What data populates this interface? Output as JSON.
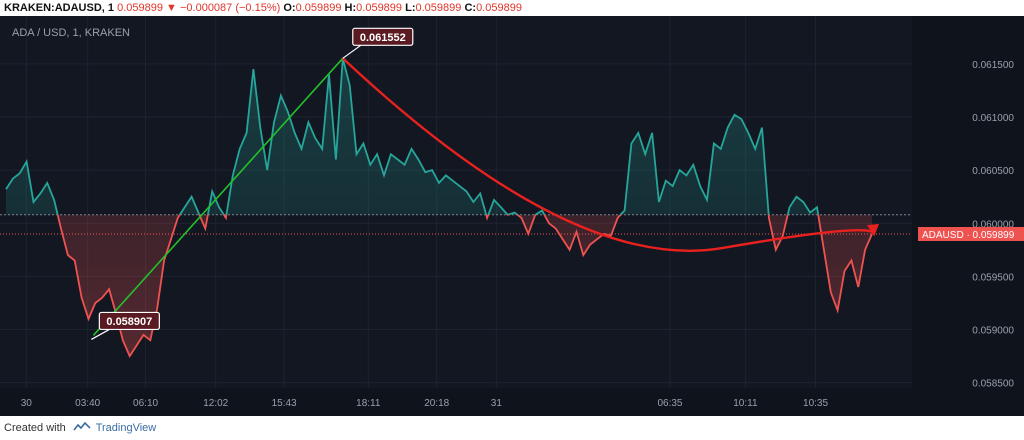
{
  "header": {
    "symbol": "KRAKEN:ADAUSD, 1",
    "last": "0.059899",
    "change_arrow": "▼",
    "change": "−0.000087 (−0.15%)",
    "open_label": "O:",
    "open": "0.059899",
    "high_label": "H:",
    "high": "0.059899",
    "low_label": "L:",
    "low": "0.059899",
    "close_label": "C:",
    "close": "0.059899"
  },
  "chart_data": {
    "type": "line",
    "title": "ADA / USD, 1, KRAKEN",
    "y_ticks": [
      "0.061500",
      "0.061000",
      "0.060500",
      "0.060000",
      "0.059500",
      "0.059000",
      "0.058500"
    ],
    "y_tick_values": [
      0.0615,
      0.061,
      0.0605,
      0.06,
      0.0595,
      0.059,
      0.0585
    ],
    "ylim": [
      0.05845,
      0.06195
    ],
    "x_ticks": [
      "30",
      "03:40",
      "06:10",
      "12:02",
      "15:43",
      "18:11",
      "20:18",
      "31",
      "06:35",
      "10:11",
      "10:35"
    ],
    "x_tick_index": [
      1.5,
      5,
      8.3,
      12.3,
      16.2,
      21,
      24.9,
      28.3,
      38.2,
      42.5,
      46.5
    ],
    "x_max": 52,
    "baseline": 0.06008,
    "last_value": 0.059899,
    "last_label": "ADAUSD · 0.059899",
    "above_color": "#26a69a",
    "below_color": "#ef5350",
    "series": [
      {
        "values": [
          0.06032,
          0.06042,
          0.06047,
          0.06058,
          0.0602,
          0.06028,
          0.06038,
          0.06022,
          0.05995,
          0.0597,
          0.05965,
          0.0593,
          0.0591,
          0.05925,
          0.0593,
          0.05938,
          0.05915,
          0.0589,
          0.05875,
          0.05885,
          0.05895,
          0.0589,
          0.0592,
          0.05965,
          0.05985,
          0.06005,
          0.06015,
          0.06025,
          0.0601,
          0.05995,
          0.0603,
          0.06015,
          0.06005,
          0.06045,
          0.0607,
          0.06085,
          0.06145,
          0.0609,
          0.0605,
          0.06095,
          0.0612,
          0.06105,
          0.06085,
          0.0607,
          0.06095,
          0.0608,
          0.0607,
          0.0614,
          0.0606,
          0.06155,
          0.0613,
          0.06065,
          0.06075,
          0.06055,
          0.06065,
          0.06045,
          0.06065,
          0.0606,
          0.06055,
          0.0607,
          0.0606,
          0.06048,
          0.0605,
          0.06038,
          0.06045,
          0.0604,
          0.06035,
          0.0603,
          0.0602,
          0.06028,
          0.06005,
          0.06022,
          0.06015,
          0.06008,
          0.0601,
          0.06005,
          0.0599,
          0.06008,
          0.06012,
          0.06,
          0.05995,
          0.05985,
          0.05975,
          0.05992,
          0.0597,
          0.0598,
          0.05985,
          0.0599,
          0.05988,
          0.06005,
          0.06012,
          0.06075,
          0.06085,
          0.06065,
          0.06085,
          0.0602,
          0.0604,
          0.06035,
          0.0605,
          0.06045,
          0.06055,
          0.06035,
          0.06022,
          0.06075,
          0.0607,
          0.0609,
          0.06102,
          0.06098,
          0.06085,
          0.0607,
          0.0609,
          0.06005,
          0.05975,
          0.05988,
          0.06015,
          0.06025,
          0.0602,
          0.0601,
          0.06015,
          0.05975,
          0.05935,
          0.05918,
          0.05955,
          0.05965,
          0.0594,
          0.05975,
          0.0599
        ]
      }
    ],
    "annotations": [
      {
        "label": "0.058907",
        "value": 0.058907
      },
      {
        "label": "0.061552",
        "value": 0.061552
      }
    ]
  },
  "footer": {
    "prefix": "Created with",
    "brand": "TradingView"
  }
}
